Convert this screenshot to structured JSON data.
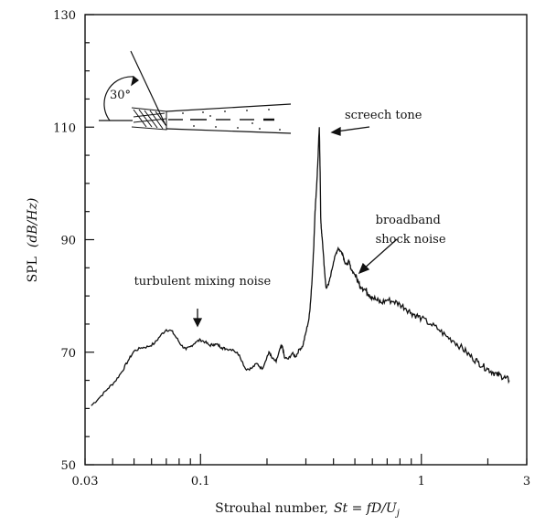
{
  "chart_data": {
    "type": "line",
    "title": "",
    "xlabel": "Strouhal number,",
    "xlabel_formula": "St = fD/U",
    "xlabel_sub": "j",
    "ylabel": "SPL",
    "ylabel_unit": "(dB/Hz)",
    "x_scale": "log",
    "xlim": [
      0.03,
      3
    ],
    "ylim": [
      50,
      130
    ],
    "x_ticks": [
      {
        "value": 0.03,
        "label": "0.03"
      },
      {
        "value": 0.1,
        "label": "0.1"
      },
      {
        "value": 1,
        "label": "1"
      },
      {
        "value": 3,
        "label": "3"
      }
    ],
    "y_ticks": [
      {
        "value": 50,
        "label": "50"
      },
      {
        "value": 70,
        "label": "70"
      },
      {
        "value": 90,
        "label": "90"
      },
      {
        "value": 110,
        "label": "110"
      },
      {
        "value": 130,
        "label": "130"
      }
    ],
    "grid": false,
    "series": [
      {
        "x": [
          0.032,
          0.035,
          0.038,
          0.041,
          0.044,
          0.047,
          0.05,
          0.054,
          0.058,
          0.062,
          0.066,
          0.07,
          0.074,
          0.078,
          0.082,
          0.086,
          0.09,
          0.095,
          0.1,
          0.105,
          0.11,
          0.115,
          0.12,
          0.125,
          0.13,
          0.14,
          0.15,
          0.16,
          0.17,
          0.18,
          0.19,
          0.2,
          0.205,
          0.21,
          0.22,
          0.23,
          0.235,
          0.24,
          0.25,
          0.26,
          0.27,
          0.28,
          0.29,
          0.3,
          0.31,
          0.315,
          0.32,
          0.325,
          0.33,
          0.335,
          0.34,
          0.345,
          0.348,
          0.35,
          0.352,
          0.355,
          0.36,
          0.365,
          0.37,
          0.38,
          0.39,
          0.4,
          0.41,
          0.42,
          0.43,
          0.44,
          0.45,
          0.46,
          0.47,
          0.48,
          0.5,
          0.52,
          0.54,
          0.56,
          0.58,
          0.6,
          0.63,
          0.66,
          0.7,
          0.75,
          0.8,
          0.85,
          0.9,
          0.95,
          1.0,
          1.1,
          1.2,
          1.3,
          1.4,
          1.5,
          1.6,
          1.7,
          1.8,
          1.9,
          2.0,
          2.1,
          2.2,
          2.3,
          2.4,
          2.5
        ],
        "y": [
          60.5,
          62.0,
          63.5,
          64.8,
          66.5,
          68.5,
          70.2,
          70.8,
          71.0,
          71.6,
          73.0,
          74.0,
          73.8,
          72.5,
          71.2,
          70.5,
          71.0,
          71.8,
          72.2,
          71.8,
          71.2,
          71.4,
          71.3,
          70.8,
          70.6,
          70.5,
          69.5,
          67.0,
          67.1,
          68.0,
          67.0,
          69.2,
          70.0,
          69.0,
          68.3,
          70.8,
          71.0,
          69.0,
          68.8,
          69.8,
          69.2,
          70.5,
          71.0,
          73.5,
          76.0,
          79.0,
          83.0,
          88.0,
          95.0,
          99.0,
          104.0,
          110.0,
          102.0,
          94.0,
          92.0,
          90.5,
          87.5,
          84.0,
          81.5,
          82.0,
          84.0,
          86.0,
          87.5,
          88.5,
          88.0,
          87.5,
          86.0,
          85.5,
          86.2,
          84.8,
          83.8,
          82.3,
          81.5,
          81.0,
          80.3,
          79.8,
          79.2,
          78.8,
          79.3,
          79.0,
          78.5,
          77.8,
          77.0,
          76.5,
          76.0,
          75.0,
          74.0,
          72.8,
          72.0,
          71.0,
          70.0,
          69.0,
          68.3,
          67.5,
          67.0,
          66.5,
          66.0,
          65.8,
          65.4,
          65.0
        ]
      }
    ],
    "annotations": [
      {
        "text": "screech tone",
        "x": 0.45,
        "y": 111.5
      },
      {
        "text": "broadband",
        "x": 0.62,
        "y": 92.8
      },
      {
        "text": "shock noise",
        "x": 0.62,
        "y": 89.4
      },
      {
        "text": "turbulent mixing noise",
        "x": 0.05,
        "y": 82.0
      }
    ],
    "inset": {
      "angle_label": "30°"
    }
  }
}
